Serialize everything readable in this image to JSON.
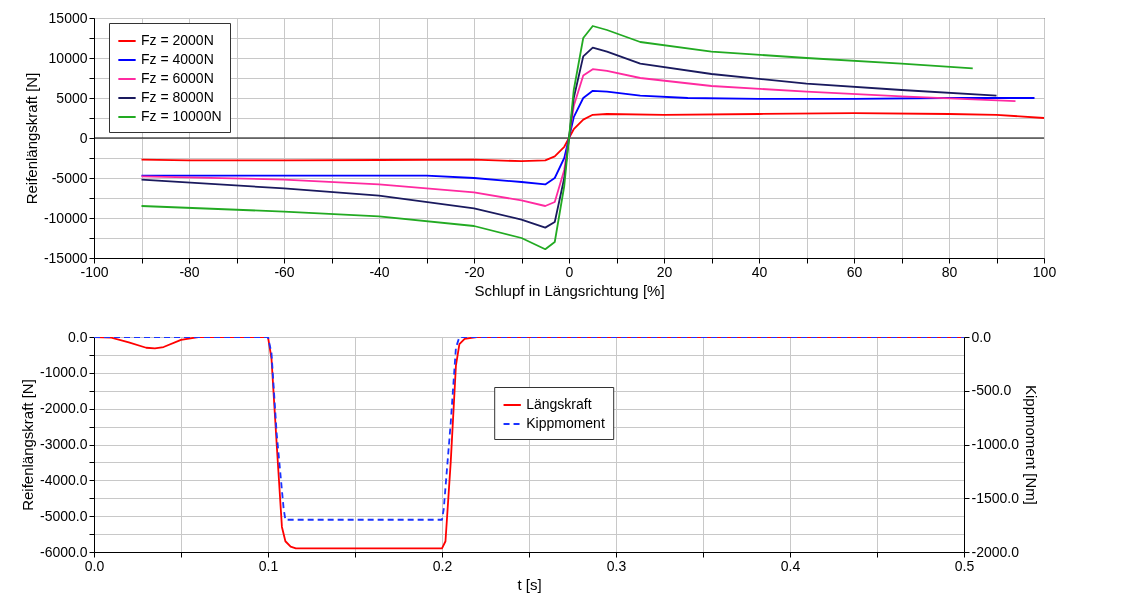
{
  "chart_data": [
    {
      "type": "line",
      "xlabel": "Schlupf in Längsrichtung [%]",
      "ylabel": "Reifenlängskraft [N]",
      "xlim": [
        -100,
        100
      ],
      "ylim": [
        -15000,
        15000
      ],
      "xticks": [
        -100,
        {
          "value": -90,
          "label": null
        },
        -80,
        {
          "value": -70,
          "label": null
        },
        -60,
        {
          "value": -50,
          "label": null
        },
        -40,
        {
          "value": -30,
          "label": null
        },
        -20,
        {
          "value": -10,
          "label": null
        },
        0,
        {
          "value": 10,
          "label": null
        },
        20,
        {
          "value": 30,
          "label": null
        },
        40,
        {
          "value": 50,
          "label": null
        },
        60,
        {
          "value": 70,
          "label": null
        },
        80,
        {
          "value": 90,
          "label": null
        },
        100
      ],
      "yticks": [
        -15000,
        {
          "value": -12500,
          "label": null
        },
        -10000,
        {
          "value": -7500,
          "label": null
        },
        -5000,
        {
          "value": -2500,
          "label": null
        },
        0,
        {
          "value": 2500,
          "label": null
        },
        5000,
        {
          "value": 7500,
          "label": null
        },
        10000,
        {
          "value": 12500,
          "label": null
        },
        15000
      ],
      "grid": true,
      "legend": "top left",
      "ref_lines": [
        {
          "axis": "y",
          "value": 0,
          "color": "#000000"
        }
      ],
      "series": [
        {
          "name": "Fz = 2000N",
          "color": "#ff0000",
          "x": [
            -90,
            -80,
            -60,
            -40,
            -20,
            -10,
            -5,
            -3,
            -1,
            0,
            1,
            3,
            5,
            8,
            20,
            40,
            60,
            80,
            90,
            100
          ],
          "values": [
            -2700,
            -2800,
            -2800,
            -2750,
            -2700,
            -2900,
            -2800,
            -2300,
            -1100,
            0,
            1100,
            2300,
            2900,
            3000,
            2900,
            3000,
            3100,
            3000,
            2900,
            2500
          ]
        },
        {
          "name": "Fz = 4000N",
          "color": "#0000ff",
          "x": [
            -90,
            -60,
            -30,
            -20,
            -10,
            -5,
            -3,
            -1,
            0,
            1,
            3,
            5,
            8,
            15,
            25,
            40,
            60,
            80,
            98
          ],
          "values": [
            -4700,
            -4700,
            -4700,
            -5000,
            -5500,
            -5800,
            -5000,
            -2500,
            0,
            2600,
            5000,
            5900,
            5800,
            5300,
            5000,
            4900,
            4900,
            5000,
            5000
          ]
        },
        {
          "name": "Fz = 6000N",
          "color": "#ff2aa0",
          "x": [
            -90,
            -60,
            -40,
            -20,
            -10,
            -5,
            -3,
            -1,
            0,
            1,
            3,
            5,
            8,
            15,
            30,
            50,
            70,
            94
          ],
          "values": [
            -4800,
            -5200,
            -5800,
            -6800,
            -7800,
            -8500,
            -8000,
            -4000,
            0,
            4000,
            7800,
            8600,
            8400,
            7500,
            6500,
            5800,
            5200,
            4600
          ]
        },
        {
          "name": "Fz = 8000N",
          "color": "#1a1a5e",
          "x": [
            -90,
            -60,
            -40,
            -20,
            -10,
            -5,
            -3,
            -1,
            0,
            1,
            3,
            5,
            8,
            15,
            30,
            50,
            70,
            90
          ],
          "values": [
            -5200,
            -6300,
            -7200,
            -8800,
            -10200,
            -11200,
            -10500,
            -5000,
            0,
            5000,
            10200,
            11300,
            10800,
            9300,
            8000,
            6800,
            6000,
            5300
          ]
        },
        {
          "name": "Fz = 10000N",
          "color": "#22aa22",
          "x": [
            -90,
            -60,
            -40,
            -20,
            -10,
            -5,
            -3,
            -1,
            0,
            1,
            3,
            5,
            8,
            15,
            30,
            50,
            70,
            85
          ],
          "values": [
            -8500,
            -9200,
            -9800,
            -11000,
            -12500,
            -13900,
            -13000,
            -6000,
            0,
            6000,
            12500,
            14000,
            13500,
            12000,
            10800,
            10000,
            9300,
            8700
          ]
        }
      ]
    },
    {
      "type": "line",
      "xlabel": "t [s]",
      "ylabel": "Reifenlängskraft [N]",
      "y2label": "Kippmoment [Nm]",
      "xlim": [
        0,
        0.5
      ],
      "ylim": [
        -6000,
        0
      ],
      "y2lim": [
        -2000,
        0
      ],
      "xticks": [
        {
          "value": 0,
          "label": "0.0"
        },
        {
          "value": 0.05,
          "label": null
        },
        0.1,
        {
          "value": 0.15,
          "label": null
        },
        0.2,
        {
          "value": 0.25,
          "label": null
        },
        0.3,
        {
          "value": 0.35,
          "label": null
        },
        0.4,
        {
          "value": 0.45,
          "label": null
        },
        0.5
      ],
      "yticks": [
        {
          "value": -6000,
          "label": "-6000.0"
        },
        {
          "value": -5500,
          "label": null
        },
        {
          "value": -5000,
          "label": "-5000.0"
        },
        {
          "value": -4500,
          "label": null
        },
        {
          "value": -4000,
          "label": "-4000.0"
        },
        {
          "value": -3500,
          "label": null
        },
        {
          "value": -3000,
          "label": "-3000.0"
        },
        {
          "value": -2500,
          "label": null
        },
        {
          "value": -2000,
          "label": "-2000.0"
        },
        {
          "value": -1500,
          "label": null
        },
        {
          "value": -1000,
          "label": "-1000.0"
        },
        {
          "value": -500,
          "label": null
        },
        {
          "value": 0,
          "label": "0.0"
        }
      ],
      "y2ticks": [
        {
          "value": -2000,
          "label": "-2000.0"
        },
        {
          "value": -1500,
          "label": "-1500.0"
        },
        {
          "value": -1000,
          "label": "-1000.0"
        },
        {
          "value": -500,
          "label": "-500.0"
        },
        {
          "value": 0,
          "label": "0.0"
        }
      ],
      "grid": true,
      "legend": "top",
      "series": [
        {
          "name": "Längskraft",
          "color": "#ff0000",
          "line_style": "solid",
          "x": [
            0,
            0.01,
            0.02,
            0.03,
            0.035,
            0.04,
            0.05,
            0.06,
            0.1,
            0.102,
            0.105,
            0.108,
            0.11,
            0.113,
            0.116,
            0.2,
            0.202,
            0.205,
            0.208,
            0.21,
            0.213,
            0.22,
            0.5
          ],
          "values": [
            0,
            -20,
            -150,
            -300,
            -320,
            -280,
            -80,
            0,
            0,
            -600,
            -3000,
            -5300,
            -5700,
            -5850,
            -5900,
            -5900,
            -5700,
            -3500,
            -800,
            -200,
            -50,
            0,
            0
          ]
        },
        {
          "name": "Kippmoment",
          "color": "#1a33ff",
          "line_style": "dashed",
          "axis": "y2",
          "x": [
            0,
            0.1,
            0.102,
            0.105,
            0.109,
            0.11,
            0.2,
            0.201,
            0.205,
            0.208,
            0.21,
            0.5
          ],
          "values": [
            0,
            0,
            -150,
            -900,
            -1600,
            -1700,
            -1700,
            -1600,
            -800,
            -100,
            0,
            0
          ]
        }
      ]
    }
  ]
}
